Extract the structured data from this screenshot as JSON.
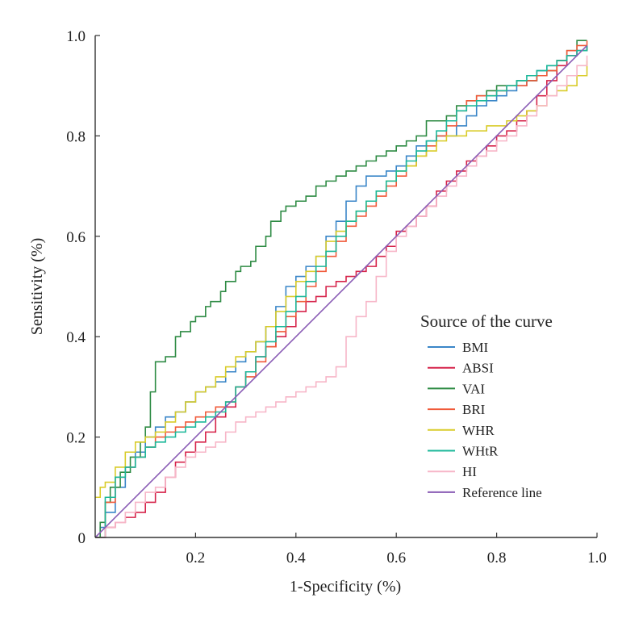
{
  "chart_data": {
    "type": "line",
    "title": "",
    "xlabel": "1-Specificity (%)",
    "ylabel": "Sensitivity (%)",
    "xlim": [
      0,
      1
    ],
    "ylim": [
      0,
      1
    ],
    "x_ticks": [
      {
        "value": 0.2,
        "label": "0.2"
      },
      {
        "value": 0.4,
        "label": "0.4"
      },
      {
        "value": 0.6,
        "label": "0.6"
      },
      {
        "value": 0.8,
        "label": "0.8"
      },
      {
        "value": 1.0,
        "label": "1.0"
      }
    ],
    "y_ticks": [
      {
        "value": 0,
        "label": "0"
      },
      {
        "value": 0.2,
        "label": "0.2"
      },
      {
        "value": 0.4,
        "label": "0.4"
      },
      {
        "value": 0.6,
        "label": "0.6"
      },
      {
        "value": 0.8,
        "label": "0.8"
      },
      {
        "value": 1.0,
        "label": "1.0"
      }
    ],
    "grid": false,
    "legend": {
      "title": "Source of the curve",
      "placement": "right"
    },
    "series": [
      {
        "name": "BMI",
        "color": "#3a86c8",
        "x": [
          0,
          0.01,
          0.02,
          0.04,
          0.06,
          0.08,
          0.1,
          0.12,
          0.14,
          0.16,
          0.18,
          0.2,
          0.22,
          0.24,
          0.26,
          0.28,
          0.3,
          0.32,
          0.34,
          0.36,
          0.38,
          0.4,
          0.42,
          0.44,
          0.46,
          0.48,
          0.5,
          0.52,
          0.54,
          0.56,
          0.58,
          0.6,
          0.62,
          0.64,
          0.66,
          0.68,
          0.7,
          0.72,
          0.74,
          0.76,
          0.78,
          0.8,
          0.82,
          0.84,
          0.86,
          0.88,
          0.9,
          0.92,
          0.94,
          0.96,
          0.98
        ],
        "y": [
          0,
          0.02,
          0.05,
          0.1,
          0.14,
          0.17,
          0.2,
          0.22,
          0.24,
          0.25,
          0.27,
          0.29,
          0.3,
          0.31,
          0.33,
          0.35,
          0.37,
          0.39,
          0.42,
          0.46,
          0.5,
          0.52,
          0.54,
          0.56,
          0.6,
          0.63,
          0.67,
          0.7,
          0.72,
          0.72,
          0.73,
          0.74,
          0.76,
          0.78,
          0.79,
          0.8,
          0.8,
          0.82,
          0.84,
          0.86,
          0.87,
          0.88,
          0.89,
          0.9,
          0.91,
          0.93,
          0.94,
          0.95,
          0.96,
          0.97,
          0.98
        ]
      },
      {
        "name": "ABSI",
        "color": "#d6234a",
        "x": [
          0,
          0.02,
          0.04,
          0.06,
          0.08,
          0.1,
          0.12,
          0.14,
          0.16,
          0.18,
          0.2,
          0.22,
          0.24,
          0.26,
          0.28,
          0.3,
          0.32,
          0.34,
          0.36,
          0.38,
          0.4,
          0.42,
          0.44,
          0.46,
          0.48,
          0.5,
          0.52,
          0.54,
          0.56,
          0.58,
          0.6,
          0.62,
          0.64,
          0.66,
          0.68,
          0.7,
          0.72,
          0.74,
          0.76,
          0.78,
          0.8,
          0.82,
          0.84,
          0.86,
          0.88,
          0.9,
          0.92,
          0.94,
          0.96,
          0.98
        ],
        "y": [
          0,
          0.02,
          0.03,
          0.04,
          0.05,
          0.07,
          0.09,
          0.12,
          0.15,
          0.17,
          0.19,
          0.21,
          0.24,
          0.26,
          0.3,
          0.33,
          0.36,
          0.38,
          0.4,
          0.42,
          0.45,
          0.47,
          0.48,
          0.5,
          0.51,
          0.52,
          0.53,
          0.54,
          0.56,
          0.58,
          0.61,
          0.62,
          0.64,
          0.66,
          0.69,
          0.71,
          0.73,
          0.75,
          0.76,
          0.78,
          0.8,
          0.81,
          0.83,
          0.85,
          0.88,
          0.91,
          0.94,
          0.96,
          0.97,
          0.98
        ]
      },
      {
        "name": "VAI",
        "color": "#2e8b44",
        "x": [
          0,
          0.01,
          0.02,
          0.03,
          0.05,
          0.07,
          0.09,
          0.1,
          0.11,
          0.12,
          0.13,
          0.14,
          0.16,
          0.17,
          0.19,
          0.2,
          0.22,
          0.23,
          0.25,
          0.26,
          0.28,
          0.29,
          0.31,
          0.32,
          0.34,
          0.35,
          0.37,
          0.38,
          0.4,
          0.42,
          0.44,
          0.46,
          0.48,
          0.5,
          0.52,
          0.54,
          0.56,
          0.58,
          0.6,
          0.62,
          0.64,
          0.66,
          0.68,
          0.7,
          0.72,
          0.74,
          0.76,
          0.78,
          0.8,
          0.82,
          0.84,
          0.86,
          0.88,
          0.9,
          0.92,
          0.94,
          0.96,
          0.98
        ],
        "y": [
          0,
          0.03,
          0.07,
          0.1,
          0.13,
          0.16,
          0.19,
          0.22,
          0.29,
          0.35,
          0.35,
          0.36,
          0.4,
          0.41,
          0.43,
          0.44,
          0.46,
          0.47,
          0.49,
          0.51,
          0.53,
          0.54,
          0.55,
          0.58,
          0.6,
          0.63,
          0.65,
          0.66,
          0.67,
          0.68,
          0.7,
          0.71,
          0.72,
          0.73,
          0.74,
          0.75,
          0.76,
          0.77,
          0.78,
          0.79,
          0.8,
          0.83,
          0.83,
          0.84,
          0.86,
          0.87,
          0.88,
          0.89,
          0.9,
          0.9,
          0.91,
          0.91,
          0.92,
          0.93,
          0.95,
          0.97,
          0.99,
          0.99
        ]
      },
      {
        "name": "BRI",
        "color": "#f05a3a",
        "x": [
          0,
          0.02,
          0.04,
          0.06,
          0.08,
          0.1,
          0.12,
          0.14,
          0.16,
          0.18,
          0.2,
          0.22,
          0.24,
          0.26,
          0.28,
          0.3,
          0.32,
          0.34,
          0.36,
          0.38,
          0.4,
          0.42,
          0.44,
          0.46,
          0.48,
          0.5,
          0.52,
          0.54,
          0.56,
          0.58,
          0.6,
          0.62,
          0.64,
          0.66,
          0.68,
          0.7,
          0.72,
          0.74,
          0.76,
          0.78,
          0.8,
          0.82,
          0.84,
          0.86,
          0.88,
          0.9,
          0.92,
          0.94,
          0.96,
          0.98
        ],
        "y": [
          0,
          0.07,
          0.12,
          0.14,
          0.16,
          0.18,
          0.2,
          0.21,
          0.22,
          0.23,
          0.24,
          0.25,
          0.26,
          0.27,
          0.3,
          0.32,
          0.35,
          0.38,
          0.41,
          0.44,
          0.47,
          0.5,
          0.53,
          0.56,
          0.59,
          0.62,
          0.64,
          0.66,
          0.68,
          0.7,
          0.72,
          0.74,
          0.76,
          0.78,
          0.8,
          0.82,
          0.85,
          0.87,
          0.88,
          0.88,
          0.89,
          0.9,
          0.9,
          0.91,
          0.92,
          0.93,
          0.95,
          0.97,
          0.98,
          0.99
        ]
      },
      {
        "name": "WHR",
        "color": "#d9cc2a",
        "x": [
          0,
          0.01,
          0.02,
          0.04,
          0.06,
          0.08,
          0.1,
          0.12,
          0.14,
          0.16,
          0.18,
          0.2,
          0.22,
          0.24,
          0.26,
          0.28,
          0.3,
          0.32,
          0.34,
          0.36,
          0.38,
          0.4,
          0.42,
          0.44,
          0.46,
          0.48,
          0.5,
          0.52,
          0.54,
          0.56,
          0.58,
          0.6,
          0.62,
          0.64,
          0.66,
          0.68,
          0.7,
          0.72,
          0.74,
          0.76,
          0.78,
          0.8,
          0.82,
          0.84,
          0.86,
          0.88,
          0.9,
          0.92,
          0.94,
          0.96,
          0.98
        ],
        "y": [
          0.08,
          0.1,
          0.11,
          0.14,
          0.17,
          0.19,
          0.2,
          0.21,
          0.23,
          0.25,
          0.27,
          0.29,
          0.3,
          0.32,
          0.34,
          0.36,
          0.37,
          0.39,
          0.42,
          0.45,
          0.48,
          0.51,
          0.53,
          0.56,
          0.59,
          0.61,
          0.63,
          0.65,
          0.67,
          0.69,
          0.71,
          0.73,
          0.74,
          0.76,
          0.77,
          0.79,
          0.8,
          0.8,
          0.81,
          0.81,
          0.82,
          0.82,
          0.83,
          0.84,
          0.85,
          0.86,
          0.88,
          0.89,
          0.9,
          0.92,
          0.95
        ]
      },
      {
        "name": "WHtR",
        "color": "#1cb89a",
        "x": [
          0,
          0.02,
          0.04,
          0.06,
          0.08,
          0.1,
          0.12,
          0.14,
          0.16,
          0.18,
          0.2,
          0.22,
          0.24,
          0.26,
          0.28,
          0.3,
          0.32,
          0.34,
          0.36,
          0.38,
          0.4,
          0.42,
          0.44,
          0.46,
          0.48,
          0.5,
          0.52,
          0.54,
          0.56,
          0.58,
          0.6,
          0.62,
          0.64,
          0.66,
          0.68,
          0.7,
          0.72,
          0.74,
          0.76,
          0.78,
          0.8,
          0.82,
          0.84,
          0.86,
          0.88,
          0.9,
          0.92,
          0.94,
          0.96,
          0.98
        ],
        "y": [
          0,
          0.08,
          0.12,
          0.14,
          0.16,
          0.18,
          0.19,
          0.2,
          0.21,
          0.22,
          0.23,
          0.24,
          0.25,
          0.27,
          0.3,
          0.33,
          0.36,
          0.39,
          0.42,
          0.45,
          0.48,
          0.51,
          0.54,
          0.57,
          0.6,
          0.63,
          0.65,
          0.67,
          0.69,
          0.71,
          0.73,
          0.75,
          0.77,
          0.79,
          0.81,
          0.83,
          0.85,
          0.86,
          0.87,
          0.88,
          0.89,
          0.9,
          0.91,
          0.92,
          0.93,
          0.94,
          0.95,
          0.96,
          0.97,
          0.98
        ]
      },
      {
        "name": "HI",
        "color": "#f7b6c8",
        "x": [
          0,
          0.02,
          0.04,
          0.06,
          0.08,
          0.1,
          0.12,
          0.14,
          0.16,
          0.18,
          0.2,
          0.22,
          0.24,
          0.26,
          0.28,
          0.3,
          0.32,
          0.34,
          0.36,
          0.38,
          0.4,
          0.42,
          0.44,
          0.46,
          0.48,
          0.5,
          0.52,
          0.54,
          0.56,
          0.58,
          0.6,
          0.62,
          0.64,
          0.66,
          0.68,
          0.7,
          0.72,
          0.74,
          0.76,
          0.78,
          0.8,
          0.82,
          0.84,
          0.86,
          0.88,
          0.9,
          0.92,
          0.94,
          0.96,
          0.98
        ],
        "y": [
          0,
          0.02,
          0.03,
          0.05,
          0.07,
          0.09,
          0.1,
          0.12,
          0.14,
          0.16,
          0.17,
          0.18,
          0.19,
          0.21,
          0.23,
          0.24,
          0.25,
          0.26,
          0.27,
          0.28,
          0.29,
          0.3,
          0.31,
          0.32,
          0.34,
          0.4,
          0.44,
          0.47,
          0.52,
          0.57,
          0.6,
          0.62,
          0.64,
          0.66,
          0.68,
          0.7,
          0.72,
          0.74,
          0.76,
          0.77,
          0.79,
          0.8,
          0.82,
          0.84,
          0.86,
          0.88,
          0.9,
          0.92,
          0.94,
          0.96
        ]
      },
      {
        "name": "Reference line",
        "color": "#8a5cb5",
        "x": [
          0,
          0.98
        ],
        "y": [
          0,
          0.98
        ]
      }
    ]
  }
}
